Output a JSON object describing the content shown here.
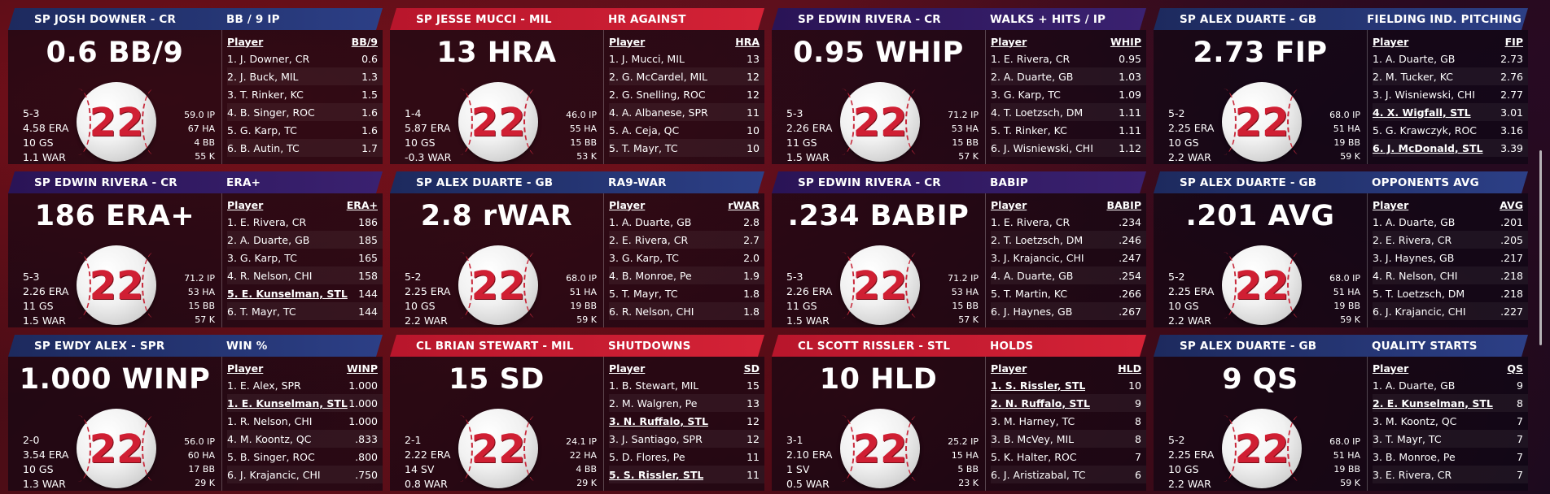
{
  "cards": [
    {
      "header_player": "SP JOSH DOWNER - CR",
      "header_stat": "BB / 9 IP",
      "header_color": "navy",
      "big_stat": "0.6 BB/9",
      "jersey": "22",
      "record": [
        "5-3",
        "4.58 ERA",
        "10 GS",
        "1.1 WAR"
      ],
      "stats": [
        "59.0 IP",
        "67 HA",
        "4 BB",
        "55 K"
      ],
      "col_player": "Player",
      "col_stat": "BB/9",
      "rows": [
        {
          "player": "1. J. Downer, CR",
          "value": "0.6",
          "highlight": false
        },
        {
          "player": "2. J. Buck, MIL",
          "value": "1.3",
          "highlight": false
        },
        {
          "player": "3. T. Rinker, KC",
          "value": "1.5",
          "highlight": false
        },
        {
          "player": "4. B. Singer, ROC",
          "value": "1.6",
          "highlight": false
        },
        {
          "player": "5. G. Karp, TC",
          "value": "1.6",
          "highlight": false
        },
        {
          "player": "6. B. Autin, TC",
          "value": "1.7",
          "highlight": false
        }
      ]
    },
    {
      "header_player": "SP JESSE MUCCI - MIL",
      "header_stat": "HR AGAINST",
      "header_color": "red",
      "big_stat": "13 HRA",
      "jersey": "22",
      "record": [
        "1-4",
        "5.87 ERA",
        "10 GS",
        "-0.3 WAR"
      ],
      "stats": [
        "46.0 IP",
        "55 HA",
        "15 BB",
        "53 K"
      ],
      "col_player": "Player",
      "col_stat": "HRA",
      "rows": [
        {
          "player": "1. J. Mucci, MIL",
          "value": "13",
          "highlight": false
        },
        {
          "player": "2. G. McCardel, MIL",
          "value": "12",
          "highlight": false
        },
        {
          "player": "2. G. Snelling, ROC",
          "value": "12",
          "highlight": false
        },
        {
          "player": "4. A. Albanese, SPR",
          "value": "11",
          "highlight": false
        },
        {
          "player": "5. A. Ceja, QC",
          "value": "10",
          "highlight": false
        },
        {
          "player": "5. T. Mayr, TC",
          "value": "10",
          "highlight": false
        }
      ]
    },
    {
      "header_player": "SP EDWIN RIVERA - CR",
      "header_stat": "WALKS + HITS / IP",
      "header_color": "purple",
      "big_stat": "0.95 WHIP",
      "jersey": "22",
      "record": [
        "5-3",
        "2.26 ERA",
        "11 GS",
        "1.5 WAR"
      ],
      "stats": [
        "71.2 IP",
        "53 HA",
        "15 BB",
        "57 K"
      ],
      "col_player": "Player",
      "col_stat": "WHIP",
      "rows": [
        {
          "player": "1. E. Rivera, CR",
          "value": "0.95",
          "highlight": false
        },
        {
          "player": "2. A. Duarte, GB",
          "value": "1.03",
          "highlight": false
        },
        {
          "player": "3. G. Karp, TC",
          "value": "1.09",
          "highlight": false
        },
        {
          "player": "4. T. Loetzsch, DM",
          "value": "1.11",
          "highlight": false
        },
        {
          "player": "5. T. Rinker, KC",
          "value": "1.11",
          "highlight": false
        },
        {
          "player": "6. J. Wisniewski, CHI",
          "value": "1.12",
          "highlight": false
        }
      ]
    },
    {
      "header_player": "SP ALEX DUARTE - GB",
      "header_stat": "FIELDING IND. PITCHING",
      "header_color": "navy",
      "big_stat": "2.73 FIP",
      "jersey": "22",
      "record": [
        "5-2",
        "2.25 ERA",
        "10 GS",
        "2.2 WAR"
      ],
      "stats": [
        "68.0 IP",
        "51 HA",
        "19 BB",
        "59 K"
      ],
      "col_player": "Player",
      "col_stat": "FIP",
      "rows": [
        {
          "player": "1. A. Duarte, GB",
          "value": "2.73",
          "highlight": false
        },
        {
          "player": "2. M. Tucker, KC",
          "value": "2.76",
          "highlight": false
        },
        {
          "player": "3. J. Wisniewski, CHI",
          "value": "2.77",
          "highlight": false
        },
        {
          "player": "4. X. Wigfall, STL",
          "value": "3.01",
          "highlight": true
        },
        {
          "player": "5. G. Krawczyk, ROC",
          "value": "3.16",
          "highlight": false
        },
        {
          "player": "6. J. McDonald, STL",
          "value": "3.39",
          "highlight": true
        }
      ]
    },
    {
      "header_player": "SP EDWIN RIVERA - CR",
      "header_stat": "ERA+",
      "header_color": "purple",
      "big_stat": "186 ERA+",
      "jersey": "22",
      "record": [
        "5-3",
        "2.26 ERA",
        "11 GS",
        "1.5 WAR"
      ],
      "stats": [
        "71.2 IP",
        "53 HA",
        "15 BB",
        "57 K"
      ],
      "col_player": "Player",
      "col_stat": "ERA+",
      "rows": [
        {
          "player": "1. E. Rivera, CR",
          "value": "186",
          "highlight": false
        },
        {
          "player": "2. A. Duarte, GB",
          "value": "185",
          "highlight": false
        },
        {
          "player": "3. G. Karp, TC",
          "value": "165",
          "highlight": false
        },
        {
          "player": "4. R. Nelson, CHI",
          "value": "158",
          "highlight": false
        },
        {
          "player": "5. E. Kunselman, STL",
          "value": "144",
          "highlight": true
        },
        {
          "player": "6. T. Mayr, TC",
          "value": "144",
          "highlight": false
        }
      ]
    },
    {
      "header_player": "SP ALEX DUARTE - GB",
      "header_stat": "RA9-WAR",
      "header_color": "navy",
      "big_stat": "2.8 rWAR",
      "jersey": "22",
      "record": [
        "5-2",
        "2.25 ERA",
        "10 GS",
        "2.2 WAR"
      ],
      "stats": [
        "68.0 IP",
        "51 HA",
        "19 BB",
        "59 K"
      ],
      "col_player": "Player",
      "col_stat": "rWAR",
      "rows": [
        {
          "player": "1. A. Duarte, GB",
          "value": "2.8",
          "highlight": false
        },
        {
          "player": "2. E. Rivera, CR",
          "value": "2.7",
          "highlight": false
        },
        {
          "player": "3. G. Karp, TC",
          "value": "2.0",
          "highlight": false
        },
        {
          "player": "4. B. Monroe, Pe",
          "value": "1.9",
          "highlight": false
        },
        {
          "player": "5. T. Mayr, TC",
          "value": "1.8",
          "highlight": false
        },
        {
          "player": "6. R. Nelson, CHI",
          "value": "1.8",
          "highlight": false
        }
      ]
    },
    {
      "header_player": "SP EDWIN RIVERA - CR",
      "header_stat": "BABIP",
      "header_color": "purple",
      "big_stat": ".234 BABIP",
      "jersey": "22",
      "record": [
        "5-3",
        "2.26 ERA",
        "11 GS",
        "1.5 WAR"
      ],
      "stats": [
        "71.2 IP",
        "53 HA",
        "15 BB",
        "57 K"
      ],
      "col_player": "Player",
      "col_stat": "BABIP",
      "rows": [
        {
          "player": "1. E. Rivera, CR",
          "value": ".234",
          "highlight": false
        },
        {
          "player": "2. T. Loetzsch, DM",
          "value": ".246",
          "highlight": false
        },
        {
          "player": "3. J. Krajancic, CHI",
          "value": ".247",
          "highlight": false
        },
        {
          "player": "4. A. Duarte, GB",
          "value": ".254",
          "highlight": false
        },
        {
          "player": "5. T. Martin, KC",
          "value": ".266",
          "highlight": false
        },
        {
          "player": "6. J. Haynes, GB",
          "value": ".267",
          "highlight": false
        }
      ]
    },
    {
      "header_player": "SP ALEX DUARTE - GB",
      "header_stat": "OPPONENTS AVG",
      "header_color": "navy",
      "big_stat": ".201 AVG",
      "jersey": "22",
      "record": [
        "5-2",
        "2.25 ERA",
        "10 GS",
        "2.2 WAR"
      ],
      "stats": [
        "68.0 IP",
        "51 HA",
        "19 BB",
        "59 K"
      ],
      "col_player": "Player",
      "col_stat": "AVG",
      "rows": [
        {
          "player": "1. A. Duarte, GB",
          "value": ".201",
          "highlight": false
        },
        {
          "player": "2. E. Rivera, CR",
          "value": ".205",
          "highlight": false
        },
        {
          "player": "3. J. Haynes, GB",
          "value": ".217",
          "highlight": false
        },
        {
          "player": "4. R. Nelson, CHI",
          "value": ".218",
          "highlight": false
        },
        {
          "player": "5. T. Loetzsch, DM",
          "value": ".218",
          "highlight": false
        },
        {
          "player": "6. J. Krajancic, CHI",
          "value": ".227",
          "highlight": false
        }
      ]
    },
    {
      "header_player": "SP EWDY ALEX - SPR",
      "header_stat": "WIN %",
      "header_color": "navy",
      "big_stat": "1.000 WINP",
      "jersey": "22",
      "record": [
        "2-0",
        "3.54 ERA",
        "10 GS",
        "1.3 WAR"
      ],
      "stats": [
        "56.0 IP",
        "60 HA",
        "17 BB",
        "29 K"
      ],
      "col_player": "Player",
      "col_stat": "WINP",
      "rows": [
        {
          "player": "1. E. Alex, SPR",
          "value": "1.000",
          "highlight": false
        },
        {
          "player": "1. E. Kunselman, STL",
          "value": "1.000",
          "highlight": true
        },
        {
          "player": "1. R. Nelson, CHI",
          "value": "1.000",
          "highlight": false
        },
        {
          "player": "4. M. Koontz, QC",
          "value": ".833",
          "highlight": false
        },
        {
          "player": "5. B. Singer, ROC",
          "value": ".800",
          "highlight": false
        },
        {
          "player": "6. J. Krajancic, CHI",
          "value": ".750",
          "highlight": false
        }
      ]
    },
    {
      "header_player": "CL BRIAN STEWART - MIL",
      "header_stat": "SHUTDOWNS",
      "header_color": "red",
      "big_stat": "15 SD",
      "jersey": "22",
      "record": [
        "2-1",
        "2.22 ERA",
        "14 SV",
        "0.8 WAR"
      ],
      "stats": [
        "24.1 IP",
        "22 HA",
        "4 BB",
        "29 K"
      ],
      "col_player": "Player",
      "col_stat": "SD",
      "rows": [
        {
          "player": "1. B. Stewart, MIL",
          "value": "15",
          "highlight": false
        },
        {
          "player": "2. M. Walgren, Pe",
          "value": "13",
          "highlight": false
        },
        {
          "player": "3. N. Ruffalo, STL",
          "value": "12",
          "highlight": true
        },
        {
          "player": "3. J. Santiago, SPR",
          "value": "12",
          "highlight": false
        },
        {
          "player": "5. D. Flores, Pe",
          "value": "11",
          "highlight": false
        },
        {
          "player": "5. S. Rissler, STL",
          "value": "11",
          "highlight": true
        }
      ]
    },
    {
      "header_player": "CL SCOTT RISSLER - STL",
      "header_stat": "HOLDS",
      "header_color": "red",
      "big_stat": "10 HLD",
      "jersey": "22",
      "record": [
        "3-1",
        "2.10 ERA",
        "1 SV",
        "0.5 WAR"
      ],
      "stats": [
        "25.2 IP",
        "15 HA",
        "5 BB",
        "23 K"
      ],
      "col_player": "Player",
      "col_stat": "HLD",
      "rows": [
        {
          "player": "1. S. Rissler, STL",
          "value": "10",
          "highlight": true
        },
        {
          "player": "2. N. Ruffalo, STL",
          "value": "9",
          "highlight": true
        },
        {
          "player": "3. M. Harney, TC",
          "value": "8",
          "highlight": false
        },
        {
          "player": "3. B. McVey, MIL",
          "value": "8",
          "highlight": false
        },
        {
          "player": "5. K. Halter, ROC",
          "value": "7",
          "highlight": false
        },
        {
          "player": "6. J. Aristizabal, TC",
          "value": "6",
          "highlight": false
        }
      ]
    },
    {
      "header_player": "SP ALEX DUARTE - GB",
      "header_stat": "QUALITY STARTS",
      "header_color": "navy",
      "big_stat": "9 QS",
      "jersey": "22",
      "record": [
        "5-2",
        "2.25 ERA",
        "10 GS",
        "2.2 WAR"
      ],
      "stats": [
        "68.0 IP",
        "51 HA",
        "19 BB",
        "59 K"
      ],
      "col_player": "Player",
      "col_stat": "QS",
      "rows": [
        {
          "player": "1. A. Duarte, GB",
          "value": "9",
          "highlight": false
        },
        {
          "player": "2. E. Kunselman, STL",
          "value": "8",
          "highlight": true
        },
        {
          "player": "3. M. Koontz, QC",
          "value": "7",
          "highlight": false
        },
        {
          "player": "3. T. Mayr, TC",
          "value": "7",
          "highlight": false
        },
        {
          "player": "3. B. Monroe, Pe",
          "value": "7",
          "highlight": false
        },
        {
          "player": "3. E. Rivera, CR",
          "value": "7",
          "highlight": false
        }
      ]
    }
  ]
}
